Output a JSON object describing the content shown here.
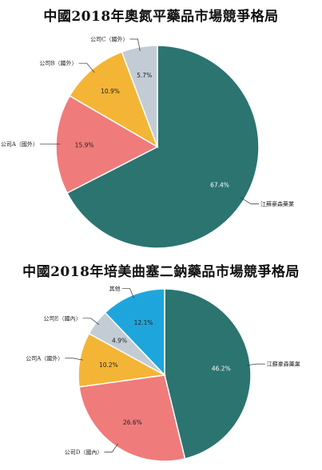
{
  "chart_data": [
    {
      "type": "pie",
      "title": "中國2018年奧氮平藥品市場競爭格局",
      "slices": [
        {
          "label": "江蘇豪森藥業",
          "value": 67.4,
          "value_label": "67.4%",
          "color": "#2b7470",
          "text_light": true
        },
        {
          "label": "公司A（國外）",
          "value": 15.9,
          "value_label": "15.9%",
          "color": "#f07b7b",
          "text_light": false
        },
        {
          "label": "公司B（國外）",
          "value": 10.9,
          "value_label": "10.9%",
          "color": "#f4b536",
          "text_light": false
        },
        {
          "label": "公司C（國外）",
          "value": 5.7,
          "value_label": "5.7%",
          "color": "#c3cbd4",
          "text_light": false
        }
      ]
    },
    {
      "type": "pie",
      "title": "中國2018年培美曲塞二鈉藥品市場競爭格局",
      "slices": [
        {
          "label": "江蘇豪森藥業",
          "value": 46.2,
          "value_label": "46.2%",
          "color": "#2b7470",
          "text_light": true
        },
        {
          "label": "公司D（國內）",
          "value": 26.6,
          "value_label": "26.6%",
          "color": "#f07b7b",
          "text_light": false
        },
        {
          "label": "公司A（國外）",
          "value": 10.2,
          "value_label": "10.2%",
          "color": "#f4b536",
          "text_light": false
        },
        {
          "label": "公司E（國內）",
          "value": 4.9,
          "value_label": "4.9%",
          "color": "#c3cbd4",
          "text_light": false
        },
        {
          "label": "其他",
          "value": 12.1,
          "value_label": "12.1%",
          "color": "#1ea6dc",
          "text_light": false
        }
      ]
    }
  ]
}
